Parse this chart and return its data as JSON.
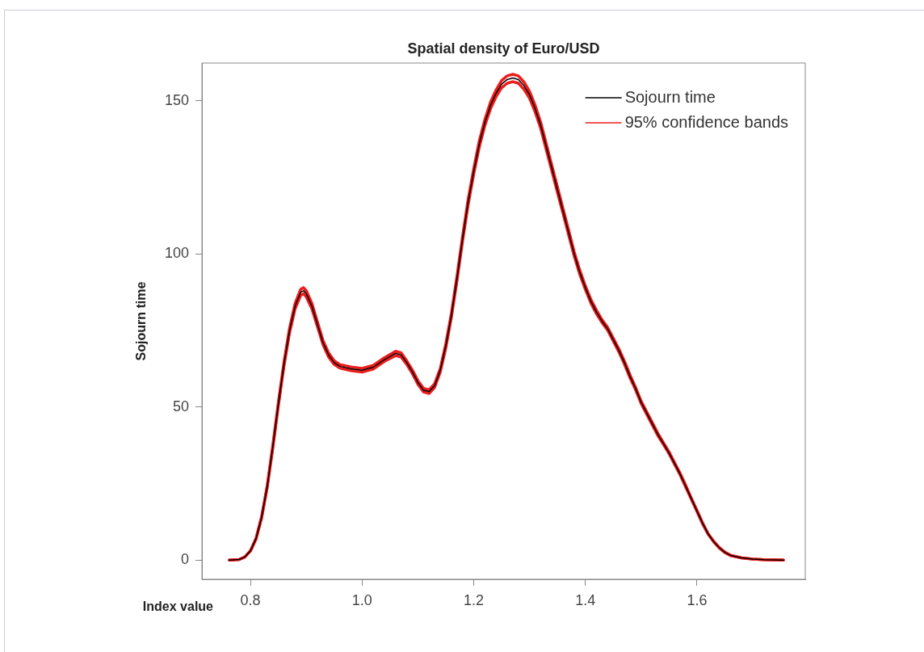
{
  "chart_data": {
    "type": "line",
    "title": "Spatial density of Euro/USD",
    "xlabel": "Index value",
    "ylabel": "Sojourn time",
    "x": [
      0.762,
      0.78,
      0.79,
      0.8,
      0.81,
      0.82,
      0.83,
      0.84,
      0.85,
      0.86,
      0.87,
      0.88,
      0.89,
      0.895,
      0.9,
      0.91,
      0.92,
      0.93,
      0.94,
      0.95,
      0.96,
      0.98,
      1.0,
      1.02,
      1.04,
      1.06,
      1.07,
      1.08,
      1.09,
      1.1,
      1.11,
      1.12,
      1.13,
      1.14,
      1.15,
      1.16,
      1.17,
      1.18,
      1.19,
      1.2,
      1.21,
      1.22,
      1.23,
      1.24,
      1.25,
      1.26,
      1.27,
      1.28,
      1.29,
      1.3,
      1.31,
      1.32,
      1.33,
      1.34,
      1.35,
      1.36,
      1.37,
      1.38,
      1.39,
      1.4,
      1.41,
      1.42,
      1.43,
      1.44,
      1.45,
      1.46,
      1.47,
      1.48,
      1.49,
      1.5,
      1.51,
      1.52,
      1.53,
      1.54,
      1.55,
      1.56,
      1.57,
      1.58,
      1.59,
      1.6,
      1.61,
      1.62,
      1.63,
      1.64,
      1.65,
      1.66,
      1.68,
      1.7,
      1.72,
      1.755
    ],
    "series": [
      {
        "name": "Sojourn time",
        "color": "#000000",
        "values": [
          0,
          0.2,
          1,
          3,
          7,
          14,
          24,
          37,
          51,
          64,
          75,
          83,
          87.5,
          88,
          87,
          83,
          77,
          71,
          67,
          64.5,
          63.3,
          62.5,
          62,
          63,
          65.5,
          67.5,
          67,
          64.5,
          61.5,
          58,
          55.5,
          55,
          57,
          62,
          70,
          80,
          92,
          105,
          117,
          127,
          136,
          143,
          148.5,
          152.5,
          155.5,
          157,
          157.5,
          157,
          155,
          152,
          147.5,
          142,
          135,
          128,
          121,
          114,
          107,
          100,
          94,
          89,
          84.5,
          81,
          78,
          75.5,
          72,
          68.5,
          64.5,
          60,
          56,
          51.5,
          48,
          44.5,
          41,
          38,
          35,
          31.5,
          28,
          24,
          20,
          16,
          12,
          8.5,
          6,
          4,
          2.5,
          1.5,
          0.7,
          0.3,
          0.1,
          0
        ]
      },
      {
        "name": "95% confidence bands",
        "color": "#ee1c1c",
        "values": [
          0,
          0.2,
          1,
          3.1,
          7.2,
          14.3,
          24.4,
          37.5,
          51.6,
          64.7,
          75.8,
          83.9,
          88.5,
          89,
          88,
          83.9,
          77.8,
          71.7,
          67.7,
          65.1,
          63.9,
          63.1,
          62.6,
          63.6,
          66.1,
          68.2,
          67.7,
          65.1,
          62.1,
          58.6,
          56.1,
          55.6,
          57.6,
          62.6,
          70.7,
          80.7,
          92.8,
          105.8,
          117.9,
          127.9,
          137,
          144,
          149.6,
          153.6,
          156.7,
          158.2,
          158.7,
          158.2,
          156.2,
          153.1,
          148.6,
          143,
          136,
          128.9,
          121.9,
          114.8,
          107.8,
          100.7,
          94.7,
          89.6,
          85.1,
          81.6,
          78.5,
          76,
          72.5,
          69,
          65,
          60.5,
          56.4,
          51.9,
          48.4,
          44.9,
          41.4,
          38.3,
          35.3,
          31.8,
          28.3,
          24.3,
          20.2,
          16.2,
          12.2,
          8.6,
          6.1,
          4.1,
          2.6,
          1.6,
          0.7,
          0.3,
          0.1,
          0
        ]
      },
      {
        "color": "#ee1c1c",
        "values": [
          0,
          0.2,
          1,
          2.9,
          6.8,
          13.7,
          23.6,
          36.5,
          50.4,
          63.3,
          74.2,
          82.1,
          86.5,
          87,
          86,
          82.1,
          76.2,
          70.3,
          66.3,
          63.9,
          62.7,
          61.9,
          61.4,
          62.4,
          64.9,
          66.8,
          66.3,
          63.9,
          60.9,
          57.4,
          54.9,
          54.4,
          56.4,
          61.4,
          69.3,
          79.3,
          91.2,
          104.2,
          116.1,
          126.1,
          135,
          142,
          147.4,
          151.4,
          154.3,
          155.8,
          156.3,
          155.8,
          153.8,
          150.9,
          146.4,
          141,
          134,
          127.1,
          120.1,
          113.2,
          106.2,
          99.3,
          93.3,
          88.4,
          83.9,
          80.4,
          77.5,
          75,
          71.5,
          68,
          64,
          59.5,
          55.6,
          51.1,
          47.6,
          44.1,
          40.6,
          37.7,
          34.7,
          31.2,
          27.7,
          23.7,
          19.8,
          15.8,
          11.8,
          8.4,
          5.9,
          3.9,
          2.4,
          1.4,
          0.7,
          0.3,
          0.1,
          0
        ]
      }
    ],
    "xlim": [
      0.713,
      1.794
    ],
    "ylim": [
      -6.3,
      162.4
    ],
    "xticks": [
      0.8,
      {
        "value": 1,
        "label": "1.0"
      },
      1.2,
      1.4,
      1.6
    ],
    "yticks": [
      0,
      50,
      100,
      150
    ],
    "grid": false,
    "legend": "top right",
    "marker": "none",
    "line_style": "solid"
  }
}
